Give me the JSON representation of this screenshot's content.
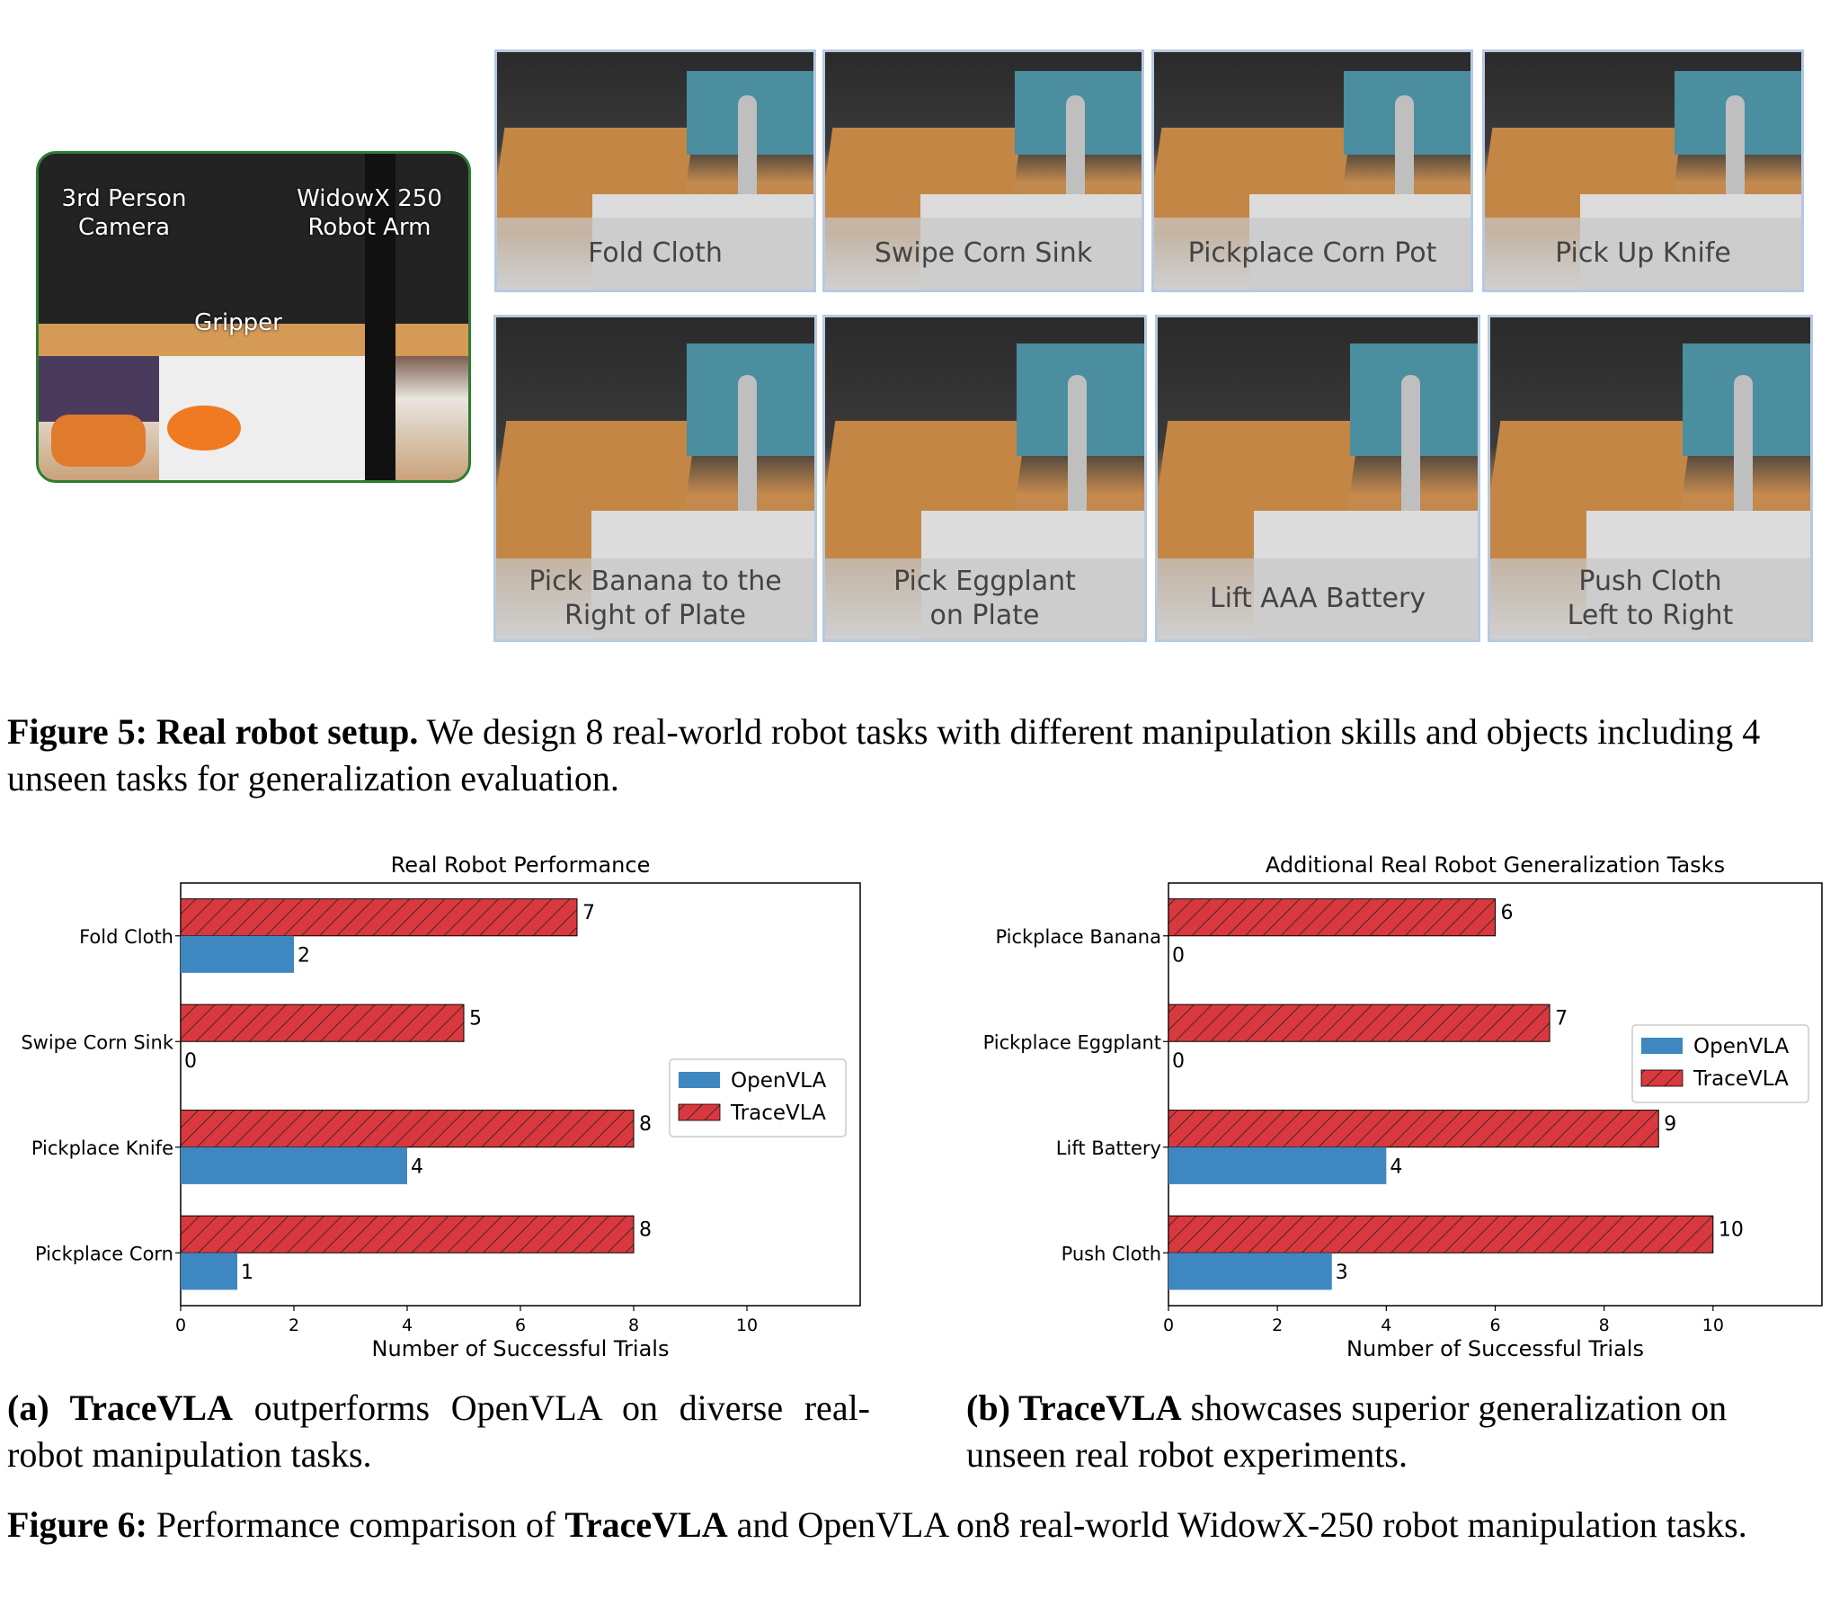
{
  "fig5": {
    "setup_labels": {
      "camera": "3rd Person\nCamera",
      "arm": "WidowX 250\nRobot Arm",
      "gripper": "Gripper"
    },
    "tasks": [
      "Fold Cloth",
      "Swipe Corn Sink",
      "Pickplace Corn Pot",
      "Pick Up Knife",
      "Pick Banana to the\nRight of Plate",
      "Pick Eggplant\non Plate",
      "Lift AAA Battery",
      "Push Cloth\nLeft to Right"
    ],
    "caption_bold": "Figure 5: Real robot setup.",
    "caption_text": " We design 8 real-world robot tasks with different manipulation skills and objects including 4 unseen tasks for generalization evaluation."
  },
  "fig6": {
    "sub_a_label": "(a) ",
    "sub_a_bold": "TraceVLA",
    "sub_a_text": " outperforms OpenVLA on diverse real-robot manipulation tasks.",
    "sub_b_label": "(b) ",
    "sub_b_bold": "TraceVLA",
    "sub_b_text": " showcases superior generalization on unseen real robot experiments.",
    "caption_label": "Figure 6:",
    "caption_pre": " Performance comparison of ",
    "caption_bold": "TraceVLA",
    "caption_post": " and OpenVLA on8 real-world WidowX-250 robot manipulation tasks."
  },
  "colors": {
    "openvla": "#3f87c0",
    "tracevla": "#d9393e",
    "setup_border": "#2e7d32",
    "task_border": "#b7c9e2"
  },
  "chart_data": [
    {
      "type": "bar",
      "orientation": "horizontal",
      "title": "Real Robot Performance",
      "xlabel": "Number of Successful Trials",
      "ylabel": "",
      "categories": [
        "Fold Cloth",
        "Swipe Corn Sink",
        "Pickplace Knife",
        "Pickplace Corn"
      ],
      "series": [
        {
          "name": "OpenVLA",
          "values": [
            2,
            0,
            4,
            1
          ],
          "hatch": false
        },
        {
          "name": "TraceVLA",
          "values": [
            7,
            5,
            8,
            8
          ],
          "hatch": true
        }
      ],
      "xlim": [
        0,
        12
      ],
      "xticks": [
        0,
        2,
        4,
        6,
        8,
        10
      ],
      "legend": "center-right"
    },
    {
      "type": "bar",
      "orientation": "horizontal",
      "title": "Additional Real Robot Generalization Tasks",
      "xlabel": "Number of Successful Trials",
      "ylabel": "",
      "categories": [
        "Pickplace Banana",
        "Pickplace Eggplant",
        "Lift Battery",
        "Push Cloth"
      ],
      "series": [
        {
          "name": "OpenVLA",
          "values": [
            0,
            0,
            4,
            3
          ],
          "hatch": false
        },
        {
          "name": "TraceVLA",
          "values": [
            6,
            7,
            9,
            10
          ],
          "hatch": true
        }
      ],
      "xlim": [
        0,
        12
      ],
      "xticks": [
        0,
        2,
        4,
        6,
        8,
        10
      ],
      "legend": "upper-right"
    }
  ]
}
